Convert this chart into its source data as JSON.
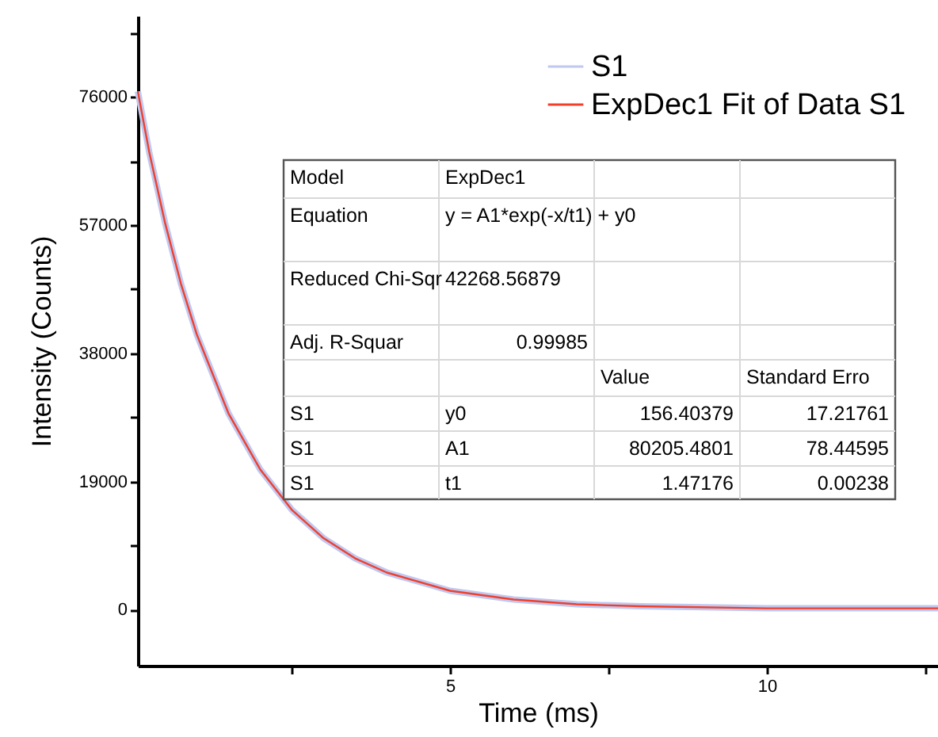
{
  "chart_data": {
    "type": "line",
    "xlabel": "Time (ms)",
    "ylabel": "Intensity (Counts)",
    "x": [
      0.07,
      0.25,
      0.5,
      0.75,
      1,
      1.5,
      2,
      2.5,
      3,
      3.5,
      4,
      5,
      6,
      7,
      8,
      10,
      12.7
    ],
    "series": [
      {
        "name": "S1",
        "color": "#c0c8f0",
        "values": [
          76800,
          67800,
          57300,
          48300,
          40800,
          29100,
          20800,
          14800,
          10600,
          7600,
          5500,
          2800,
          1500,
          800,
          500,
          200,
          200
        ]
      },
      {
        "name": "ExpDec1 Fit of Data S1",
        "color": "#f0402c",
        "values": [
          76800,
          67800,
          57300,
          48300,
          40800,
          29100,
          20800,
          14800,
          10600,
          7600,
          5500,
          2800,
          1500,
          800,
          500,
          200,
          200
        ]
      }
    ],
    "xlim": [
      0.07,
      12.7
    ],
    "ylim": [
      -8300,
      88000
    ],
    "xticks": [
      {
        "value": 2.5,
        "label": null
      },
      5,
      {
        "value": 7.5,
        "label": null
      },
      10,
      {
        "value": 12.5,
        "label": null
      }
    ],
    "yticks": [
      0,
      {
        "value": 9500,
        "label": null
      },
      19000,
      {
        "value": 28500,
        "label": null
      },
      38000,
      {
        "value": 47500,
        "label": null
      },
      57000,
      {
        "value": 66500,
        "label": null
      },
      76000,
      {
        "value": 85500,
        "label": null
      }
    ],
    "grid": false,
    "legend": "top right",
    "marker": "none",
    "line_style": "solid",
    "annotations": [
      "Model",
      "ExpDec1",
      "Equation",
      "y = A1*exp(-x/t1) + y0",
      "Reduced Chi-Sqr",
      "42268.56879",
      "Adj. R-Squar",
      "0.99985",
      "Value",
      "Standard Erro",
      "S1",
      "y0",
      "156.40379",
      "17.21761",
      "S1",
      "A1",
      "80205.4801",
      "78.44595",
      "S1",
      "t1",
      "1.47176",
      "0.00238"
    ]
  }
}
